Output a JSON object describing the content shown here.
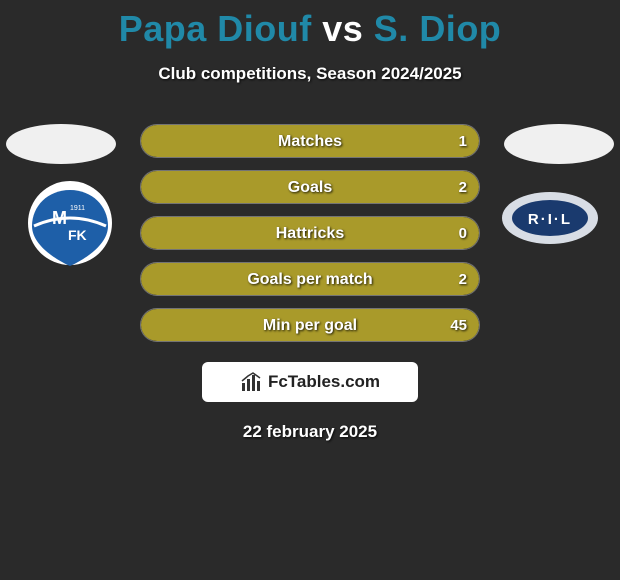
{
  "title": {
    "player1": "Papa Diouf",
    "vs": "vs",
    "player2": "S. Diop"
  },
  "subtitle": "Club competitions, Season 2024/2025",
  "colors": {
    "player1_fill": "#a99a2a",
    "player2_fill": "#a99a2a",
    "row_border": "rgba(255,255,255,0.35)",
    "badge_left_bg": "#ffffff",
    "badge_left_inner": "#1e5fa8",
    "badge_right_bg": "#1a3a6e",
    "badge_right_ring": "#d8dde5"
  },
  "stats": [
    {
      "label": "Matches",
      "left_val": "",
      "right_val": "1",
      "left_pct": 50,
      "right_pct": 50
    },
    {
      "label": "Goals",
      "left_val": "",
      "right_val": "2",
      "left_pct": 50,
      "right_pct": 50
    },
    {
      "label": "Hattricks",
      "left_val": "",
      "right_val": "0",
      "left_pct": 50,
      "right_pct": 50
    },
    {
      "label": "Goals per match",
      "left_val": "",
      "right_val": "2",
      "left_pct": 50,
      "right_pct": 50
    },
    {
      "label": "Min per goal",
      "left_val": "",
      "right_val": "45",
      "left_pct": 50,
      "right_pct": 50
    }
  ],
  "attribution": {
    "text": "FcTables.com"
  },
  "date": "22 february 2025",
  "badge_left": {
    "initials": "M FK",
    "year": "1911"
  },
  "badge_right": {
    "initials": "R·I·L"
  }
}
